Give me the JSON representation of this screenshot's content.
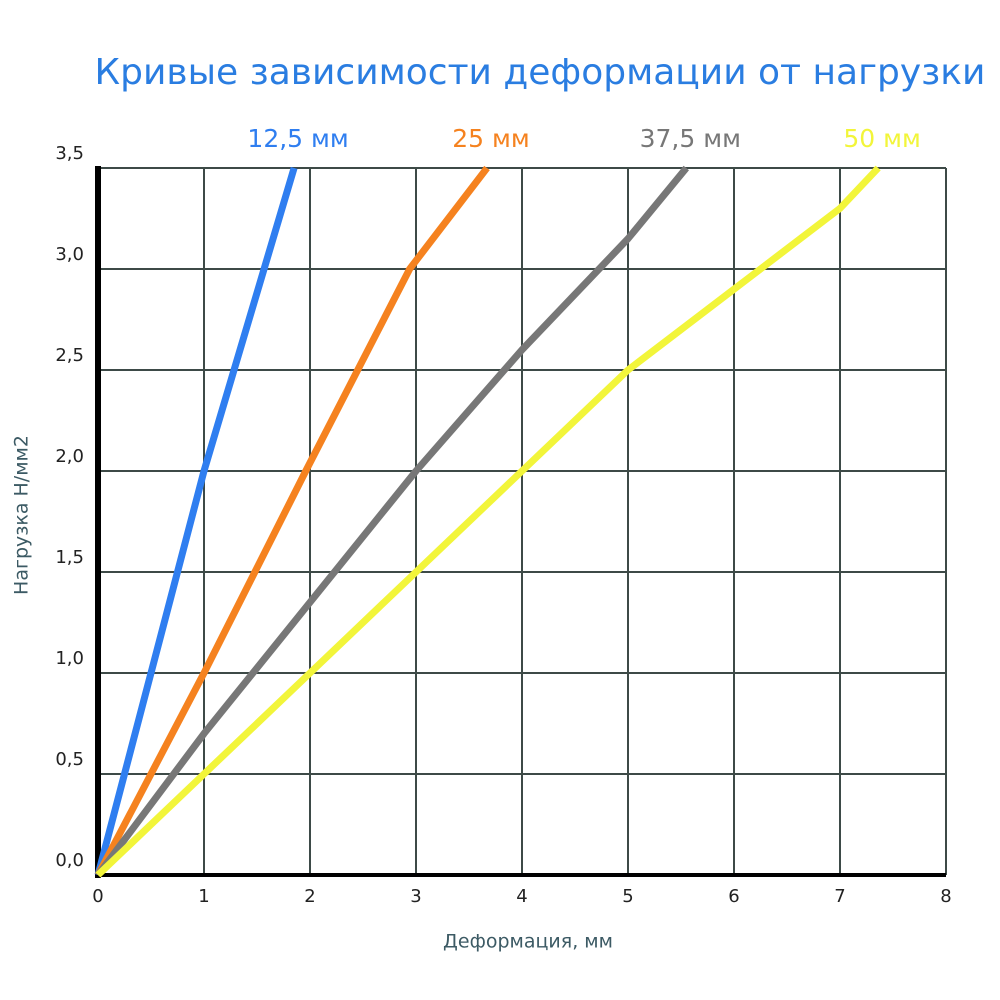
{
  "chart_data": {
    "type": "line",
    "title": "Кривые зависимости деформации от нагрузки",
    "x_label": "Деформация, мм",
    "y_label": "Нагрузка Н/мм2",
    "xlim": [
      0,
      8
    ],
    "xticks": [
      0,
      1,
      2,
      3,
      4,
      5,
      6,
      7,
      8
    ],
    "ylim": [
      0,
      3.5
    ],
    "yticks": [
      {
        "value": 0,
        "label": "0,0"
      },
      {
        "value": 0.5,
        "label": "0,5"
      },
      {
        "value": 1,
        "label": "1,0"
      },
      {
        "value": 1.5,
        "label": "1,5"
      },
      {
        "value": 2,
        "label": "2,0"
      },
      {
        "value": 2.5,
        "label": "2,5"
      },
      {
        "value": 3,
        "label": "3,0"
      },
      {
        "value": 3.5,
        "label": "3,5"
      }
    ],
    "grid": true,
    "series": [
      {
        "name": "12,5 мм",
        "color": "#2f7ef0",
        "x": [
          0,
          1,
          1.85
        ],
        "values": [
          0,
          2,
          3.5
        ]
      },
      {
        "name": "25 мм",
        "color": "#f5821f",
        "x": [
          0,
          1,
          1.96,
          2.94,
          3.67
        ],
        "values": [
          0,
          1,
          2,
          3,
          3.5
        ]
      },
      {
        "name": "37,5 мм",
        "color": "#777777",
        "x": [
          0,
          1,
          2,
          3,
          4,
          5,
          5.55
        ],
        "values": [
          0,
          0.7,
          1.35,
          2,
          2.6,
          3.15,
          3.5
        ]
      },
      {
        "name": "50 мм",
        "color": "#f2f53a",
        "x": [
          0,
          1,
          2,
          3,
          4,
          5,
          6,
          7,
          7.36
        ],
        "values": [
          0,
          0.5,
          1,
          1.5,
          2,
          2.5,
          2.9,
          3.3,
          3.5
        ]
      }
    ]
  }
}
